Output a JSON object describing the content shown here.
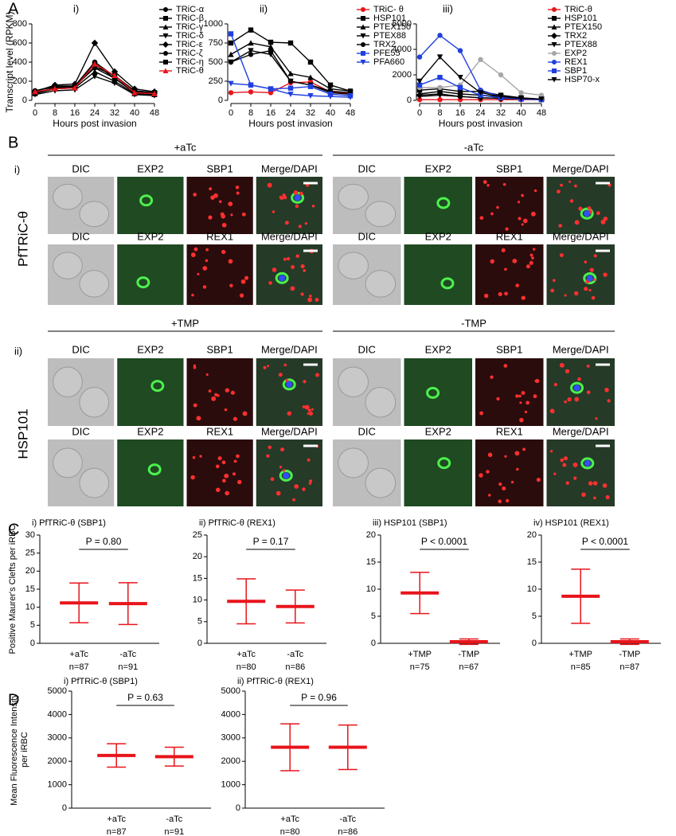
{
  "panel_labels": [
    "A",
    "B",
    "C",
    "D"
  ],
  "chart_data": [
    {
      "type": "line",
      "subtitle": "i)",
      "ylabel": "Transcript level (RPKM)",
      "xlabel": "Hours post invasion",
      "x": [
        0,
        8,
        16,
        24,
        32,
        40,
        48
      ],
      "xlim": [
        0,
        48
      ],
      "xticks": [
        0,
        8,
        16,
        24,
        32,
        40,
        48
      ],
      "ylim": [
        0,
        800
      ],
      "yticks": [
        0,
        200,
        400,
        600,
        800
      ],
      "series": [
        {
          "name": "TRiC-α",
          "color": "#000000",
          "marker": "circle",
          "values": [
            100,
            150,
            150,
            400,
            250,
            100,
            80
          ]
        },
        {
          "name": "TRiC-β",
          "color": "#000000",
          "marker": "square",
          "values": [
            80,
            130,
            150,
            380,
            230,
            80,
            70
          ]
        },
        {
          "name": "TRiC-γ",
          "color": "#000000",
          "marker": "triangle-up",
          "values": [
            70,
            120,
            130,
            300,
            200,
            70,
            60
          ]
        },
        {
          "name": "TRiC-δ",
          "color": "#000000",
          "marker": "triangle-down",
          "values": [
            60,
            100,
            110,
            250,
            180,
            60,
            50
          ]
        },
        {
          "name": "TRiC-ε",
          "color": "#000000",
          "marker": "diamond",
          "values": [
            90,
            160,
            170,
            600,
            300,
            120,
            90
          ]
        },
        {
          "name": "TRiC-ζ",
          "color": "#000000",
          "marker": "circle",
          "values": [
            100,
            140,
            150,
            340,
            230,
            90,
            70
          ]
        },
        {
          "name": "TRiC-η",
          "color": "#000000",
          "marker": "square",
          "values": [
            80,
            130,
            140,
            350,
            260,
            100,
            80
          ]
        },
        {
          "name": "TRiC-θ",
          "color": "#e8141b",
          "marker": "triangle-up",
          "values": [
            90,
            120,
            130,
            380,
            260,
            80,
            70
          ]
        }
      ]
    },
    {
      "type": "line",
      "subtitle": "ii)",
      "xlabel": "Hours post invasion",
      "x": [
        0,
        8,
        16,
        24,
        32,
        40,
        48
      ],
      "xlim": [
        0,
        48
      ],
      "xticks": [
        0,
        8,
        16,
        24,
        32,
        40,
        48
      ],
      "ylim": [
        0,
        1000
      ],
      "yticks": [
        0,
        250,
        500,
        750,
        1000
      ],
      "series": [
        {
          "name": "TRiC- θ",
          "color": "#e8141b",
          "marker": "circle",
          "values": [
            100,
            110,
            100,
            230,
            240,
            110,
            90
          ]
        },
        {
          "name": "HSP101",
          "color": "#000000",
          "marker": "square",
          "values": [
            750,
            920,
            760,
            750,
            500,
            200,
            120
          ]
        },
        {
          "name": "PTEX150",
          "color": "#000000",
          "marker": "triangle-up",
          "values": [
            600,
            750,
            700,
            350,
            300,
            150,
            120
          ]
        },
        {
          "name": "PTEX88",
          "color": "#000000",
          "marker": "triangle-down",
          "values": [
            500,
            650,
            600,
            250,
            200,
            120,
            100
          ]
        },
        {
          "name": "TRX2",
          "color": "#000000",
          "marker": "circle",
          "values": [
            500,
            600,
            650,
            250,
            200,
            100,
            80
          ]
        },
        {
          "name": "PFE55",
          "color": "#1f3fe0",
          "marker": "square",
          "values": [
            870,
            200,
            150,
            160,
            180,
            80,
            60
          ]
        },
        {
          "name": "PFA660",
          "color": "#1f3fe0",
          "marker": "triangle-down",
          "values": [
            220,
            200,
            150,
            80,
            60,
            50,
            40
          ]
        }
      ]
    },
    {
      "type": "line",
      "subtitle": "iii)",
      "xlabel": "Hours post invasion",
      "x": [
        0,
        8,
        16,
        24,
        32,
        40,
        48
      ],
      "xlim": [
        0,
        48
      ],
      "xticks": [
        0,
        8,
        16,
        24,
        32,
        40,
        48
      ],
      "ylim": [
        0,
        6000
      ],
      "yticks": [
        0,
        2000,
        4000,
        6000
      ],
      "series": [
        {
          "name": "TRiC-θ",
          "color": "#e8141b",
          "marker": "circle",
          "values": [
            50,
            50,
            50,
            50,
            50,
            50,
            50
          ]
        },
        {
          "name": "HSP101",
          "color": "#000000",
          "marker": "square",
          "values": [
            800,
            900,
            700,
            700,
            400,
            200,
            100
          ]
        },
        {
          "name": "PTEX150",
          "color": "#000000",
          "marker": "triangle-up",
          "values": [
            500,
            700,
            500,
            400,
            300,
            150,
            100
          ]
        },
        {
          "name": "TRX2",
          "color": "#000000",
          "marker": "diamond",
          "values": [
            400,
            500,
            300,
            200,
            150,
            100,
            80
          ]
        },
        {
          "name": "PTEX88",
          "color": "#000000",
          "marker": "triangle-down",
          "values": [
            300,
            400,
            300,
            200,
            150,
            100,
            80
          ]
        },
        {
          "name": "EXP2",
          "color": "#a6a6a6",
          "marker": "circle",
          "values": [
            1000,
            1000,
            1200,
            3200,
            2000,
            600,
            400
          ]
        },
        {
          "name": "REX1",
          "color": "#1f3fe0",
          "marker": "circle",
          "values": [
            3400,
            5100,
            3900,
            800,
            300,
            100,
            50
          ]
        },
        {
          "name": "SBP1",
          "color": "#1f3fe0",
          "marker": "square",
          "values": [
            1200,
            1800,
            1000,
            400,
            200,
            100,
            50
          ]
        },
        {
          "name": "HSP70-x",
          "color": "#000000",
          "marker": "triangle-down",
          "values": [
            1500,
            3400,
            1800,
            600,
            300,
            150,
            100
          ]
        }
      ]
    },
    {
      "type": "dotplot",
      "title": "i) PfTRiC-θ (SBP1)",
      "ylabel": "Positive Maurer's Clefts per iRBC",
      "categories": [
        "+aTc",
        "-aTc"
      ],
      "n_labels": [
        "n=87",
        "n=91"
      ],
      "means": [
        11.2,
        11.0
      ],
      "sd": [
        5.5,
        5.8
      ],
      "p_label": "P = 0.80",
      "ylim": [
        0,
        30
      ],
      "yticks": [
        0,
        5,
        10,
        15,
        20,
        25,
        30
      ],
      "color": "#e8141b"
    },
    {
      "type": "dotplot",
      "title": "ii) PfTRiC-θ (REX1)",
      "categories": [
        "+aTc",
        "-aTc"
      ],
      "n_labels": [
        "n=80",
        "n=86"
      ],
      "means": [
        9.7,
        8.5
      ],
      "sd": [
        5.2,
        3.8
      ],
      "p_label": "P = 0.17",
      "ylim": [
        0,
        25
      ],
      "yticks": [
        0,
        5,
        10,
        15,
        20,
        25
      ],
      "color": "#e8141b"
    },
    {
      "type": "dotplot",
      "title": "iii) HSP101 (SBP1)",
      "categories": [
        "+TMP",
        "-TMP"
      ],
      "n_labels": [
        "n=75",
        "n=67"
      ],
      "means": [
        9.3,
        0.3
      ],
      "sd": [
        3.8,
        0.5
      ],
      "p_label": "P < 0.0001",
      "ylim": [
        0,
        20
      ],
      "yticks": [
        0,
        5,
        10,
        15,
        20
      ],
      "color": "#e8141b"
    },
    {
      "type": "dotplot",
      "title": "iv) HSP101 (REX1)",
      "categories": [
        "+TMP",
        "-TMP"
      ],
      "n_labels": [
        "n=85",
        "n=87"
      ],
      "means": [
        8.7,
        0.3
      ],
      "sd": [
        5.0,
        0.5
      ],
      "p_label": "P < 0.0001",
      "ylim": [
        0,
        20
      ],
      "yticks": [
        0,
        5,
        10,
        15,
        20
      ],
      "color": "#e8141b"
    },
    {
      "type": "dotplot",
      "title": "i) PfTRiC-θ (SBP1)",
      "ylabel": [
        "Mean Fluorescence Intensity",
        "per iRBC"
      ],
      "categories": [
        "+aTc",
        "-aTc"
      ],
      "n_labels": [
        "n=87",
        "n=91"
      ],
      "means": [
        2250,
        2200
      ],
      "sd": [
        500,
        400
      ],
      "p_label": "P = 0.63",
      "ylim": [
        0,
        5000
      ],
      "yticks": [
        0,
        1000,
        2000,
        3000,
        4000,
        5000
      ],
      "color": "#e8141b"
    },
    {
      "type": "dotplot",
      "title": "ii) PfTRiC-θ (REX1)",
      "categories": [
        "+aTc",
        "-aTc"
      ],
      "n_labels": [
        "n=80",
        "n=86"
      ],
      "means": [
        2600,
        2600
      ],
      "sd": [
        1000,
        950
      ],
      "p_label": "P = 0.96",
      "ylim": [
        0,
        5000
      ],
      "yticks": [
        0,
        1000,
        2000,
        3000,
        4000,
        5000
      ],
      "color": "#e8141b"
    }
  ],
  "micrographs": {
    "row_labels": [
      "i)",
      "ii)"
    ],
    "strain_labels": [
      "PfTRiC-θ",
      "HSP101"
    ],
    "groups": [
      {
        "condition": "+aTc",
        "rows": [
          [
            "DIC",
            "EXP2",
            "SBP1",
            "Merge/DAPI"
          ],
          [
            "DIC",
            "EXP2",
            "REX1",
            "Merge/DAPI"
          ]
        ]
      },
      {
        "condition": "-aTc",
        "rows": [
          [
            "DIC",
            "EXP2",
            "SBP1",
            "Merge/DAPI"
          ],
          [
            "DIC",
            "EXP2",
            "REX1",
            "Merge/DAPI"
          ]
        ]
      },
      {
        "condition": "+TMP",
        "rows": [
          [
            "DIC",
            "EXP2",
            "SBP1",
            "Merge/DAPI"
          ],
          [
            "DIC",
            "EXP2",
            "REX1",
            "Merge/DAPI"
          ]
        ]
      },
      {
        "condition": "-TMP",
        "rows": [
          [
            "DIC",
            "EXP2",
            "SBP1",
            "Merge/DAPI"
          ],
          [
            "DIC",
            "EXP2",
            "REX1",
            "Merge/DAPI"
          ]
        ]
      }
    ]
  }
}
